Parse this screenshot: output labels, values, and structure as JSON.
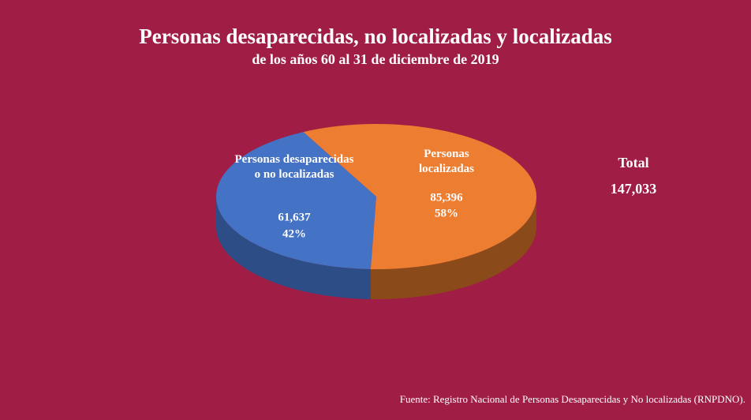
{
  "chart_data": {
    "type": "pie",
    "title": "Personas desaparecidas, no localizadas y localizadas",
    "subtitle": "de los años 60  al 31 de diciembre de 2019",
    "categories": [
      "Personas desaparecidas o no localizadas",
      "Personas localizadas"
    ],
    "values": [
      61637,
      85396
    ],
    "value_labels": [
      "61,637",
      "85,396"
    ],
    "percentages": [
      42,
      58
    ],
    "percentage_labels": [
      "42%",
      "58%"
    ],
    "colors": [
      "#4472c4",
      "#ed7d31"
    ],
    "total": {
      "label": "Total",
      "value": 147033,
      "value_label": "147,033"
    },
    "source": "Fuente: Registro Nacional de Personas Desaparecidas y No localizadas (RNPDNO)."
  }
}
